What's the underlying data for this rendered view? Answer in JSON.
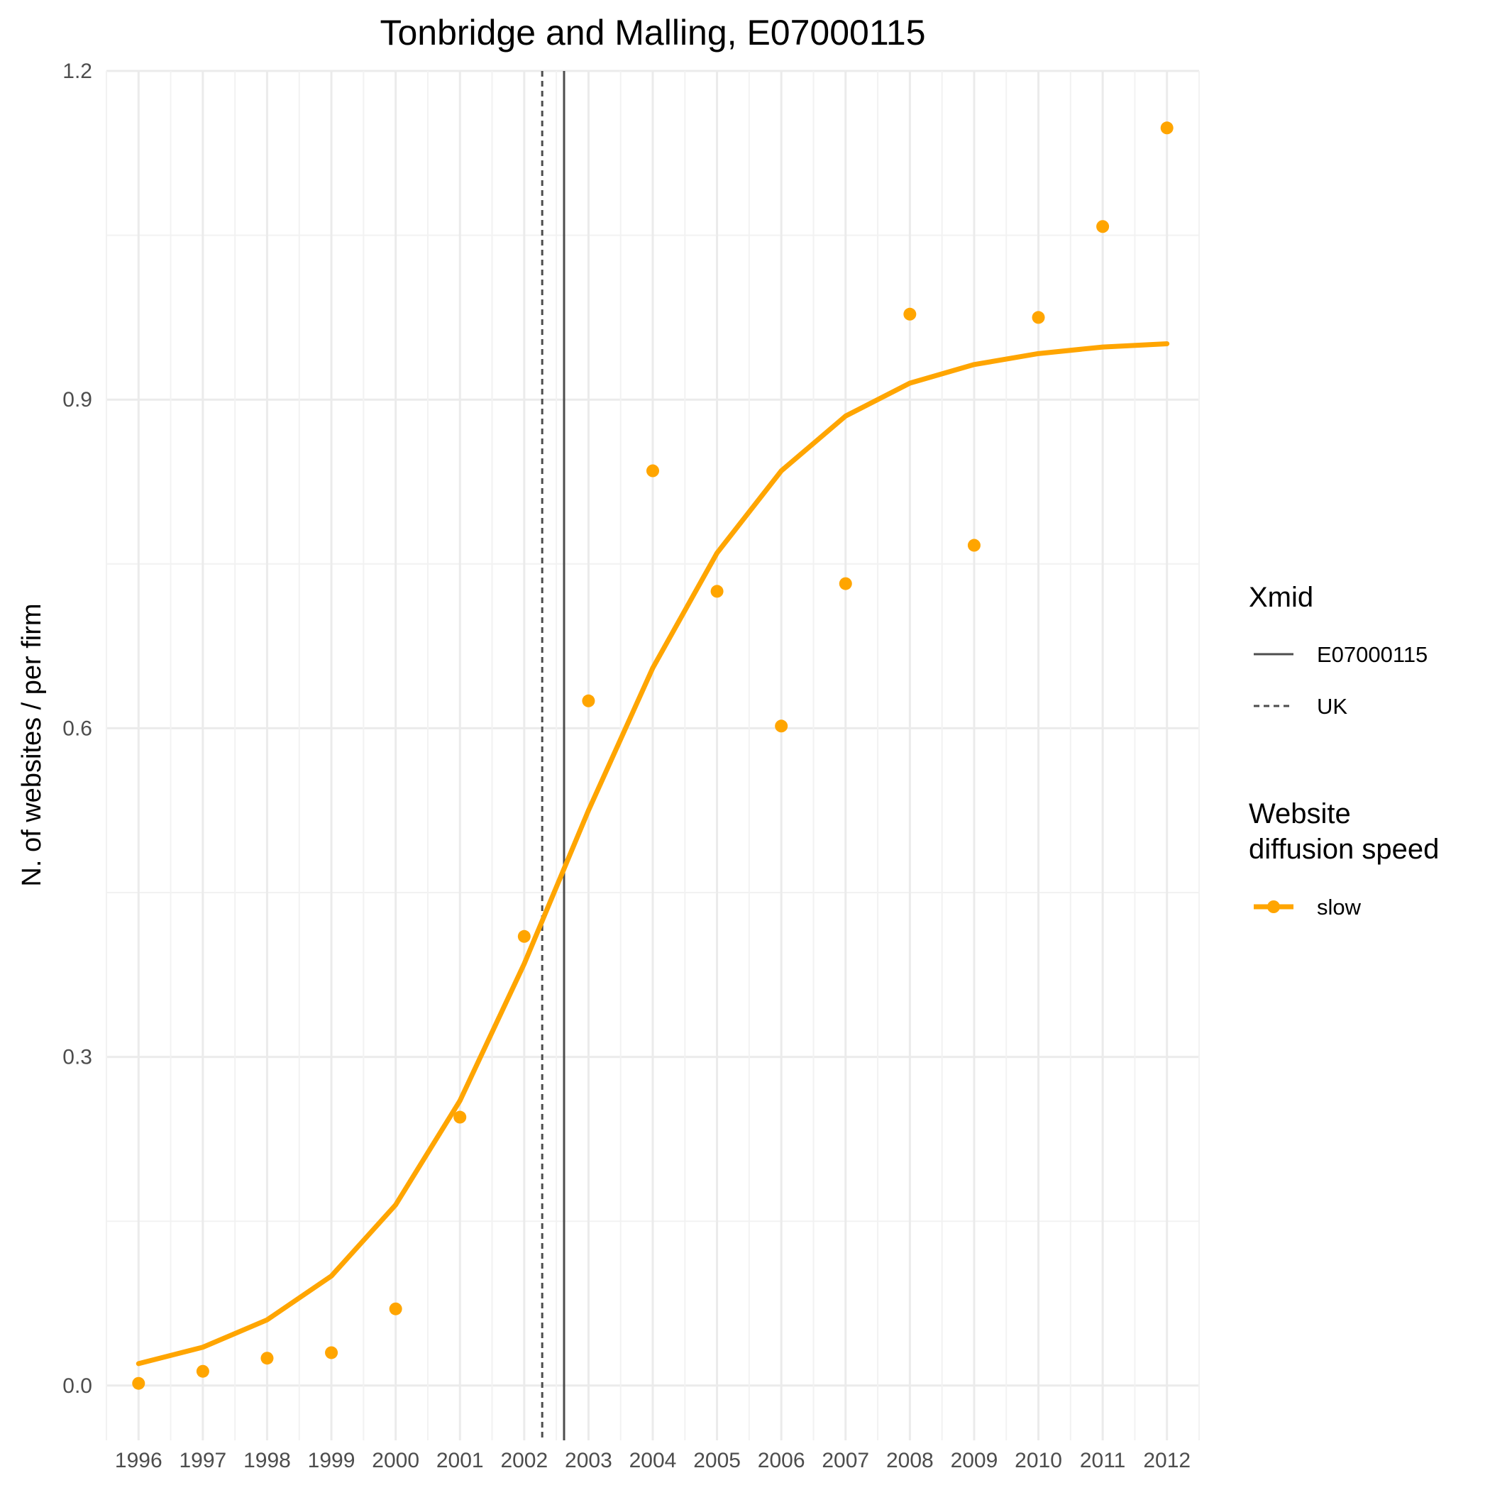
{
  "chart_data": {
    "type": "line",
    "title": "Tonbridge and Malling, E07000115",
    "xlabel": "",
    "ylabel": "N. of websites / per firm",
    "x": [
      1996,
      1997,
      1998,
      1999,
      2000,
      2001,
      2002,
      2003,
      2004,
      2005,
      2006,
      2007,
      2008,
      2009,
      2010,
      2011,
      2012
    ],
    "xlim": [
      1995.5,
      2012.5
    ],
    "ylim": [
      -0.05,
      1.2
    ],
    "yticks": [
      "0.0",
      "0.3",
      "0.6",
      "0.9",
      "1.2"
    ],
    "grid": true,
    "series": [
      {
        "name": "slow",
        "kind": "fitted-line",
        "color": "#FFA500",
        "values": [
          0.02,
          0.035,
          0.06,
          0.1,
          0.165,
          0.26,
          0.385,
          0.525,
          0.655,
          0.76,
          0.835,
          0.885,
          0.915,
          0.932,
          0.942,
          0.948,
          0.951
        ]
      },
      {
        "name": "slow",
        "kind": "observed-points",
        "color": "#FFA500",
        "values": [
          0.002,
          0.013,
          0.025,
          0.03,
          0.07,
          0.245,
          0.41,
          0.625,
          0.835,
          0.725,
          0.602,
          0.732,
          0.978,
          0.767,
          0.975,
          1.058,
          1.148
        ]
      }
    ],
    "vlines": [
      {
        "name": "E07000115",
        "x": 2002.62,
        "style": "solid",
        "color": "#4d4d4d"
      },
      {
        "name": "UK",
        "x": 2002.28,
        "style": "dashed",
        "color": "#4d4d4d"
      }
    ],
    "legends": [
      {
        "title": "Xmid",
        "entries": [
          {
            "label": "E07000115",
            "style": "solid"
          },
          {
            "label": "UK",
            "style": "dashed"
          }
        ]
      },
      {
        "title_lines": [
          "Website",
          "diffusion speed"
        ],
        "entries": [
          {
            "label": "slow",
            "style": "line-point",
            "color": "#FFA500"
          }
        ]
      }
    ],
    "legend_position": "right"
  }
}
